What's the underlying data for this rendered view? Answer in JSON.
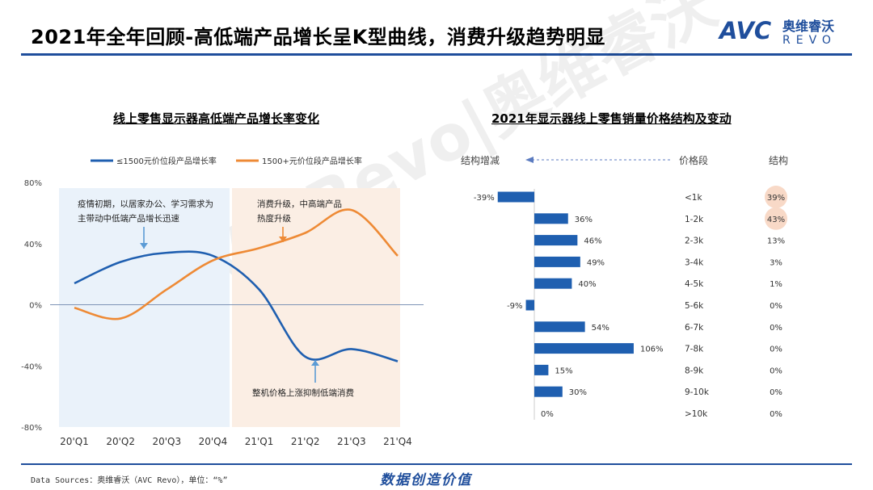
{
  "page": {
    "title": "2021年全年回顾-高低端产品增长呈K型曲线，消费升级趋势明显",
    "logo": {
      "left": "AVC",
      "cn": "奥维睿沃",
      "en": "REVO"
    },
    "watermark": "AVC Revo|奥维睿沃",
    "footer_source": "Data Sources：奥维睿沃（AVC Revo），单位：“%”",
    "footer_slogan": "数据创造价值",
    "colors": {
      "brand": "#1f4e9c",
      "series_low": "#1f5fb0",
      "series_high": "#ee8a35",
      "bar": "#1f5fb0",
      "highlight": "#f8d9c7"
    }
  },
  "chart_data": [
    {
      "type": "line",
      "title": "线上零售显示器高低端产品增长率变化",
      "categories": [
        "20'Q1",
        "20'Q2",
        "20'Q3",
        "20'Q4",
        "21'Q1",
        "21'Q2",
        "21'Q3",
        "21'Q4"
      ],
      "ylim": [
        -80,
        80
      ],
      "yticks": [
        "80%",
        "40%",
        "0%",
        "-40%",
        "-80%"
      ],
      "series": [
        {
          "name": "≤1500元价位段产品增长率",
          "values": [
            14,
            28,
            34,
            32,
            10,
            -34,
            -29,
            -37
          ]
        },
        {
          "name": "1500+元价位段产品增长率",
          "values": [
            -2,
            -9,
            10,
            29,
            37,
            47,
            62,
            32
          ]
        }
      ],
      "annotations": [
        "疫情初期，以居家办公、学习需求为主带动中低端产品增长迅速",
        "消费升级，中高端产品热度升级",
        "整机价格上涨抑制低端消费"
      ]
    },
    {
      "type": "bar",
      "title": "2021年显示器线上零售销量价格结构及变动",
      "headers": {
        "change": "结构增减",
        "segment": "价格段",
        "share": "结构"
      },
      "categories": [
        "<1k",
        "1-2k",
        "2-3k",
        "3-4k",
        "4-5k",
        "5-6k",
        "6-7k",
        "7-8k",
        "8-9k",
        "9-10k",
        ">10k"
      ],
      "values": [
        -39,
        36,
        46,
        49,
        40,
        -9,
        54,
        106,
        15,
        30,
        0
      ],
      "value_labels": [
        "-39%",
        "36%",
        "46%",
        "49%",
        "40%",
        "-9%",
        "54%",
        "106%",
        "15%",
        "30%",
        "0%"
      ],
      "share": [
        "39%",
        "43%",
        "13%",
        "3%",
        "1%",
        "0%",
        "0%",
        "0%",
        "0%",
        "0%",
        "0%"
      ]
    }
  ]
}
